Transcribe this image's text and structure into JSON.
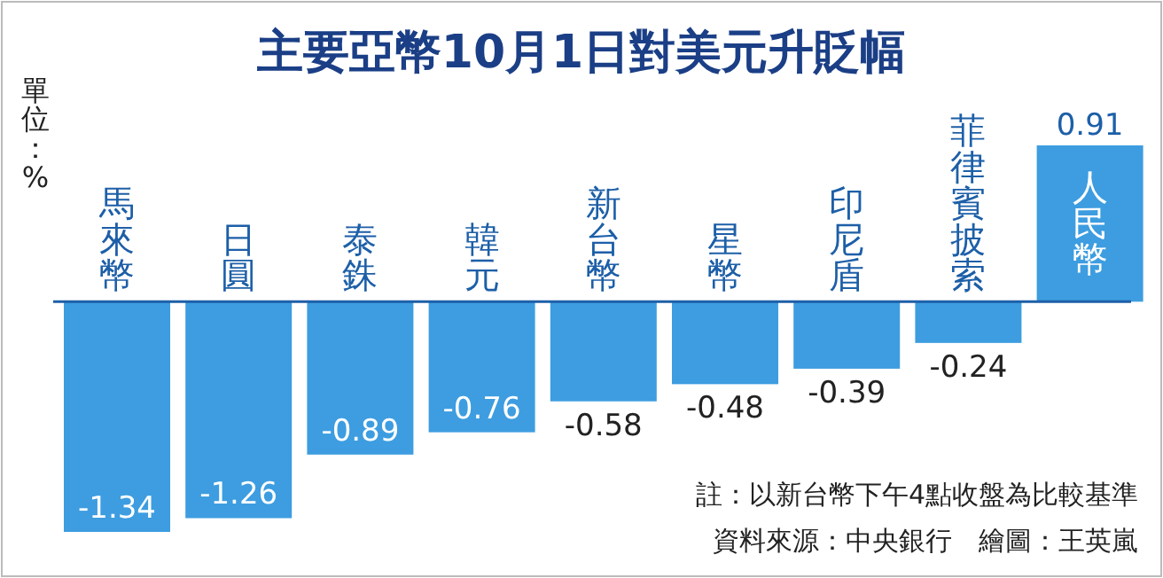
{
  "chart_data": {
    "type": "bar",
    "title": "主要亞幣10月1日對美元升貶幅",
    "ylabel": "單位：%",
    "categories": [
      "馬來幣",
      "日圓",
      "泰銖",
      "韓元",
      "新台幣",
      "星幣",
      "印尼盾",
      "菲律賓披索",
      "人民幣"
    ],
    "values": [
      -1.34,
      -1.26,
      -0.89,
      -0.76,
      -0.58,
      -0.48,
      -0.39,
      -0.24,
      0.91
    ],
    "color": "#3d9de0",
    "data_labels": true,
    "annotations": [
      "註：以新台幣下午4點收盤為比較基準",
      "資料來源：中央銀行　繪圖：王英嵐"
    ]
  }
}
